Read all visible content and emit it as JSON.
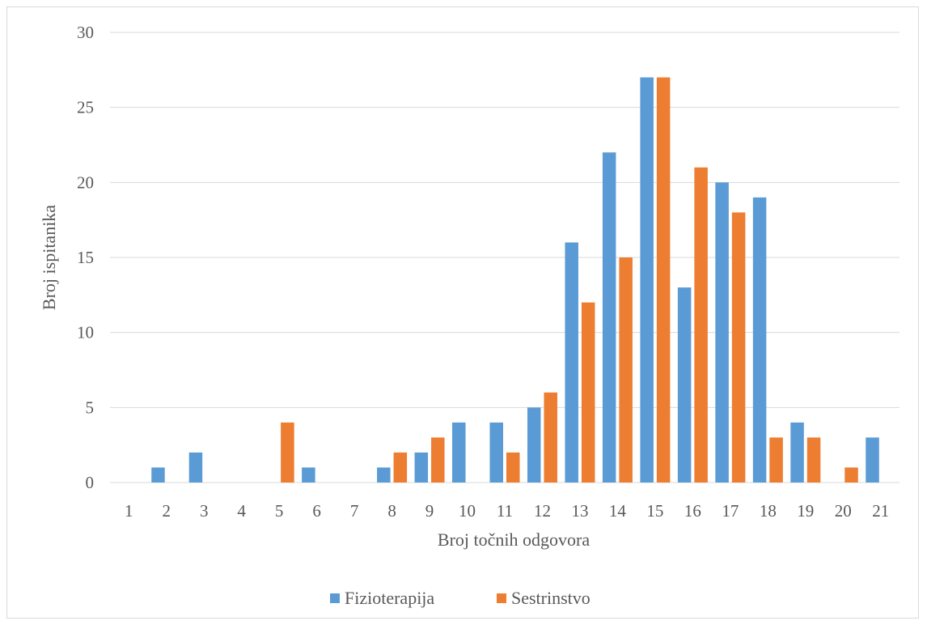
{
  "chart_data": {
    "type": "bar",
    "title": "",
    "xlabel": "Broj točnih odgovora",
    "ylabel": "Broj ispitanika",
    "ylim": [
      0,
      30
    ],
    "yticks": [
      0,
      5,
      10,
      15,
      20,
      25,
      30
    ],
    "grid": true,
    "legend_position": "bottom",
    "categories": [
      "1",
      "2",
      "3",
      "4",
      "5",
      "6",
      "7",
      "8",
      "9",
      "10",
      "11",
      "12",
      "13",
      "14",
      "15",
      "16",
      "17",
      "18",
      "19",
      "20",
      "21"
    ],
    "series": [
      {
        "name": "Fizioterapija",
        "color": "#5b9bd5",
        "values": [
          0,
          1,
          2,
          0,
          0,
          1,
          0,
          1,
          2,
          4,
          4,
          5,
          16,
          22,
          27,
          13,
          20,
          19,
          4,
          0,
          3
        ]
      },
      {
        "name": "Sestrinstvo",
        "color": "#ed7d31",
        "values": [
          0,
          0,
          0,
          0,
          4,
          0,
          0,
          2,
          3,
          0,
          2,
          6,
          12,
          15,
          27,
          21,
          18,
          3,
          3,
          1,
          0
        ]
      }
    ]
  }
}
